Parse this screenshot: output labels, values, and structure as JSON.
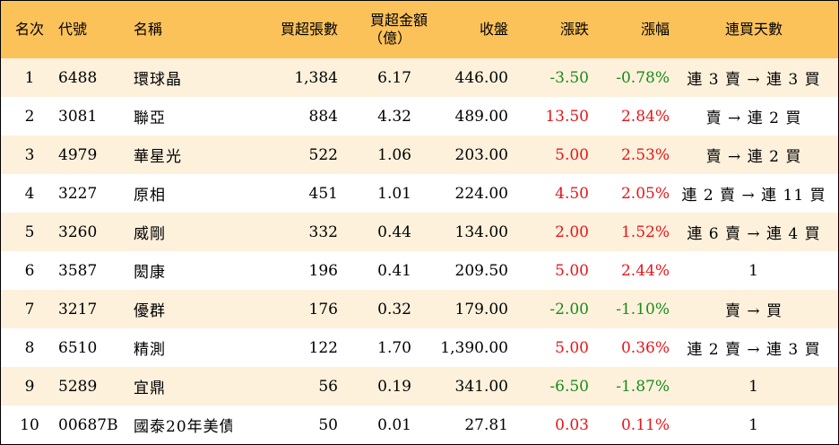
{
  "headers": {
    "rank": "名次",
    "code": "代號",
    "name": "名稱",
    "net_buy_lots": "買超張數",
    "net_buy_amount_line1": "買超金額",
    "net_buy_amount_line2": "（億）",
    "close": "收盤",
    "change": "漲跌",
    "change_pct": "漲幅",
    "consecutive_days": "連買天數"
  },
  "colors": {
    "header_bg": "#fbc25a",
    "odd_row_bg": "#fdf1dc",
    "up": "#e8141a",
    "down": "#1a8a1a"
  },
  "rows": [
    {
      "rank": "1",
      "code": "6488",
      "name": "環球晶",
      "lots": "1,384",
      "amount": "6.17",
      "close": "446.00",
      "change": "-3.50",
      "pct": "-0.78%",
      "dir": "down",
      "days": "連 3 賣 → 連 3 買"
    },
    {
      "rank": "2",
      "code": "3081",
      "name": "聯亞",
      "lots": "884",
      "amount": "4.32",
      "close": "489.00",
      "change": "13.50",
      "pct": "2.84%",
      "dir": "up",
      "days": "賣 → 連 2 買"
    },
    {
      "rank": "3",
      "code": "4979",
      "name": "華星光",
      "lots": "522",
      "amount": "1.06",
      "close": "203.00",
      "change": "5.00",
      "pct": "2.53%",
      "dir": "up",
      "days": "賣 → 連 2 買"
    },
    {
      "rank": "4",
      "code": "3227",
      "name": "原相",
      "lots": "451",
      "amount": "1.01",
      "close": "224.00",
      "change": "4.50",
      "pct": "2.05%",
      "dir": "up",
      "days": "連 2 賣 → 連 11 買"
    },
    {
      "rank": "5",
      "code": "3260",
      "name": "威剛",
      "lots": "332",
      "amount": "0.44",
      "close": "134.00",
      "change": "2.00",
      "pct": "1.52%",
      "dir": "up",
      "days": "連 6 賣 → 連 4 買"
    },
    {
      "rank": "6",
      "code": "3587",
      "name": "閎康",
      "lots": "196",
      "amount": "0.41",
      "close": "209.50",
      "change": "5.00",
      "pct": "2.44%",
      "dir": "up",
      "days": "1"
    },
    {
      "rank": "7",
      "code": "3217",
      "name": "優群",
      "lots": "176",
      "amount": "0.32",
      "close": "179.00",
      "change": "-2.00",
      "pct": "-1.10%",
      "dir": "down",
      "days": "賣 → 買"
    },
    {
      "rank": "8",
      "code": "6510",
      "name": "精測",
      "lots": "122",
      "amount": "1.70",
      "close": "1,390.00",
      "change": "5.00",
      "pct": "0.36%",
      "dir": "up",
      "days": "連 2 賣 → 連 3 買"
    },
    {
      "rank": "9",
      "code": "5289",
      "name": "宜鼎",
      "lots": "56",
      "amount": "0.19",
      "close": "341.00",
      "change": "-6.50",
      "pct": "-1.87%",
      "dir": "down",
      "days": "1"
    },
    {
      "rank": "10",
      "code": "00687B",
      "name": "國泰20年美債",
      "lots": "50",
      "amount": "0.01",
      "close": "27.81",
      "change": "0.03",
      "pct": "0.11%",
      "dir": "up",
      "days": "1"
    }
  ]
}
